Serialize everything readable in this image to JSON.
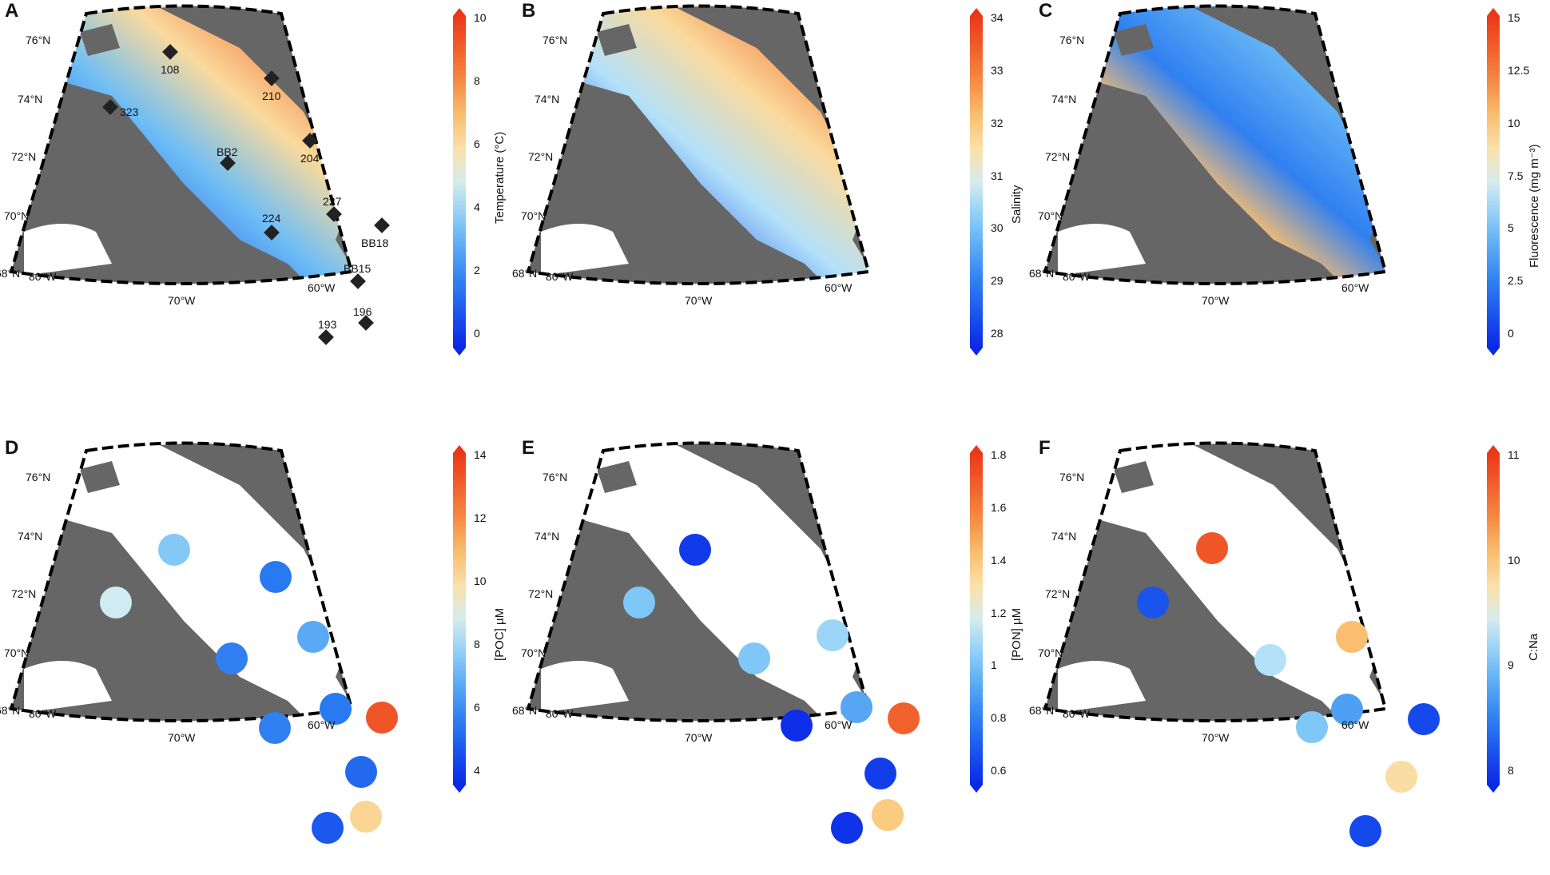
{
  "panels": [
    {
      "id": "A",
      "letter": "A",
      "colorbar": {
        "title": "Temperature (°C)",
        "ticks": [
          "10",
          "8",
          "6",
          "4",
          "2",
          "0"
        ],
        "range": [
          -1,
          10
        ],
        "cmap": "rdylbu"
      },
      "lat_labels": [
        "76°N",
        "74°N",
        "72°N",
        "70°N",
        "68°N"
      ],
      "lon_labels": [
        "80°W",
        "70°W",
        "60°W"
      ],
      "stations": [
        {
          "name": "108"
        },
        {
          "name": "210"
        },
        {
          "name": "323"
        },
        {
          "name": "204"
        },
        {
          "name": "BB2"
        },
        {
          "name": "227"
        },
        {
          "name": "224"
        },
        {
          "name": "BB18"
        },
        {
          "name": "BB15"
        },
        {
          "name": "196"
        },
        {
          "name": "193"
        }
      ]
    },
    {
      "id": "B",
      "letter": "B",
      "colorbar": {
        "title": "Salinity",
        "ticks": [
          "34",
          "33",
          "32",
          "31",
          "30",
          "29",
          "28"
        ],
        "range": [
          28,
          34
        ],
        "cmap": "rdylbu"
      },
      "lat_labels": [
        "76°N",
        "74°N",
        "72°N",
        "70°N",
        "68°N"
      ],
      "lon_labels": [
        "80°W",
        "70°W",
        "60°W"
      ]
    },
    {
      "id": "C",
      "letter": "C",
      "colorbar": {
        "title": "Fluorescence (mg m⁻³)",
        "ticks": [
          "15",
          "12.5",
          "10",
          "7.5",
          "5",
          "2.5",
          "0"
        ],
        "range": [
          0,
          15
        ],
        "cmap": "rdylbu"
      },
      "lat_labels": [
        "76°N",
        "74°N",
        "72°N",
        "70°N",
        "68°N"
      ],
      "lon_labels": [
        "80°W",
        "70°W",
        "60°W"
      ]
    },
    {
      "id": "D",
      "letter": "D",
      "colorbar": {
        "title": "[POC] µM",
        "ticks": [
          "14",
          "12",
          "10",
          "8",
          "6",
          "4"
        ],
        "range": [
          3,
          14
        ],
        "cmap": "rdylbu"
      },
      "lat_labels": [
        "76°N",
        "74°N",
        "72°N",
        "70°N",
        "68°N"
      ],
      "lon_labels": [
        "80°W",
        "70°W",
        "60°W"
      ]
    },
    {
      "id": "E",
      "letter": "E",
      "colorbar": {
        "title": "[PON] µM",
        "ticks": [
          "1.8",
          "1.6",
          "1.4",
          "1.2",
          "1",
          "0.8",
          "0.6"
        ],
        "range": [
          0.6,
          1.8
        ],
        "cmap": "rdylbu"
      },
      "lat_labels": [
        "76°N",
        "74°N",
        "72°N",
        "70°N",
        "68°N"
      ],
      "lon_labels": [
        "80°W",
        "70°W",
        "60°W"
      ]
    },
    {
      "id": "F",
      "letter": "F",
      "colorbar": {
        "title": "C:Na",
        "ticks": [
          "11",
          "10",
          "9",
          "8"
        ],
        "range": [
          7.5,
          11.5
        ],
        "cmap": "rdylbu"
      },
      "lat_labels": [
        "76°N",
        "74°N",
        "72°N",
        "70°N",
        "68°N"
      ],
      "lon_labels": [
        "80°W",
        "70°W",
        "60°W"
      ]
    }
  ],
  "station_values": {
    "stations": [
      "108",
      "210",
      "323",
      "204",
      "BB2",
      "227",
      "224",
      "BB18",
      "BB15",
      "196",
      "193"
    ],
    "POC": [
      7.2,
      5.0,
      8.4,
      6.3,
      5.2,
      5.0,
      5.2,
      13.2,
      4.6,
      10.0,
      4.2
    ],
    "PON": [
      0.65,
      null,
      1.05,
      1.1,
      1.05,
      0.95,
      0.62,
      1.68,
      0.66,
      1.4,
      0.63
    ],
    "C_Na": [
      11.2,
      null,
      7.9,
      10.3,
      9.3,
      8.6,
      9.0,
      7.8,
      null,
      9.95,
      7.8
    ]
  },
  "colors": {
    "land": "#666666",
    "cold": "#0a2bd8",
    "warm": "#f0401c"
  }
}
